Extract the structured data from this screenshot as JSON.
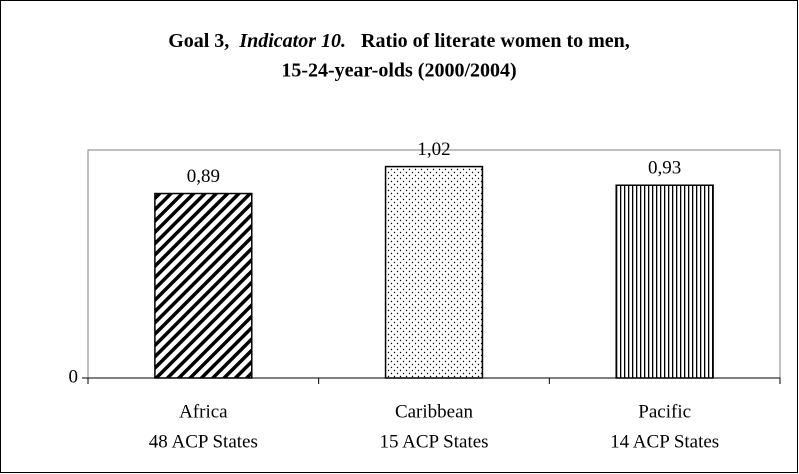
{
  "chart_data": {
    "type": "bar",
    "title": [
      "Goal 3,",
      "Indicator 10.",
      "Ratio of literate women to men,",
      "15-24-year-olds (2000/2004)"
    ],
    "categories": [
      [
        "Africa",
        "48 ACP States"
      ],
      [
        "Caribbean",
        "15 ACP States"
      ],
      [
        "Pacific",
        "14 ACP States"
      ]
    ],
    "values": [
      0.89,
      1.02,
      0.93
    ],
    "value_labels": [
      "0,89",
      "1,02",
      "0,93"
    ],
    "patterns": [
      "diagonal",
      "dots",
      "vertical"
    ],
    "color": "#000000",
    "ylim": [
      0,
      1.1
    ],
    "yticks": [
      0
    ],
    "grid": false
  }
}
